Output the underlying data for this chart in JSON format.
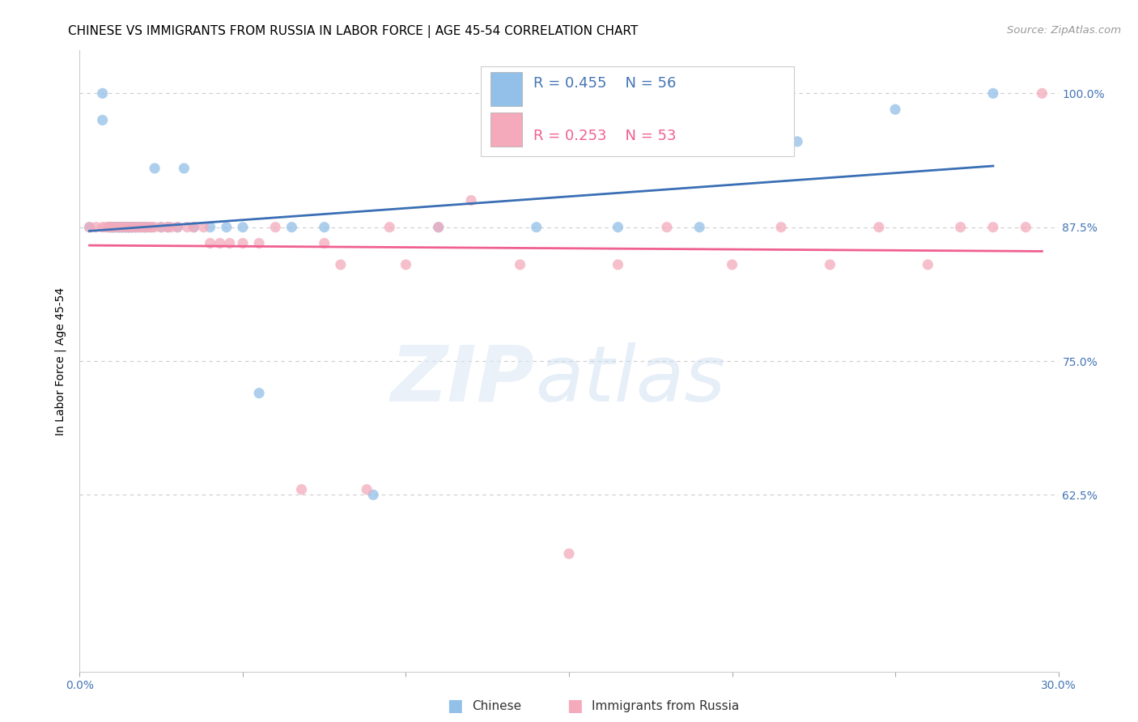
{
  "title": "CHINESE VS IMMIGRANTS FROM RUSSIA IN LABOR FORCE | AGE 45-54 CORRELATION CHART",
  "source": "Source: ZipAtlas.com",
  "ylabel": "In Labor Force | Age 45-54",
  "xlim": [
    0.0,
    0.3
  ],
  "ylim": [
    0.46,
    1.04
  ],
  "yticks": [
    1.0,
    0.875,
    0.75,
    0.625
  ],
  "ytick_labels": [
    "100.0%",
    "87.5%",
    "75.0%",
    "62.5%"
  ],
  "xticks": [
    0.0,
    0.05,
    0.1,
    0.15,
    0.2,
    0.25,
    0.3
  ],
  "xtick_labels": [
    "0.0%",
    "",
    "",
    "",
    "",
    "",
    "30.0%"
  ],
  "chinese_color": "#92C0E8",
  "russia_color": "#F4AABB",
  "chinese_line_color": "#3A6FB5",
  "russia_line_color": "#F06090",
  "chinese_x": [
    0.003,
    0.007,
    0.007,
    0.009,
    0.009,
    0.01,
    0.01,
    0.01,
    0.011,
    0.011,
    0.012,
    0.012,
    0.012,
    0.013,
    0.013,
    0.013,
    0.014,
    0.014,
    0.014,
    0.015,
    0.015,
    0.015,
    0.015,
    0.016,
    0.016,
    0.016,
    0.017,
    0.017,
    0.018,
    0.018,
    0.019,
    0.02,
    0.02,
    0.021,
    0.022,
    0.023,
    0.025,
    0.027,
    0.03,
    0.032,
    0.035,
    0.04,
    0.045,
    0.05,
    0.055,
    0.065,
    0.075,
    0.09,
    0.11,
    0.125,
    0.14,
    0.165,
    0.19,
    0.22,
    0.25,
    0.28
  ],
  "chinese_y": [
    0.875,
    0.975,
    1.0,
    0.875,
    0.875,
    0.875,
    0.875,
    0.875,
    0.875,
    0.875,
    0.875,
    0.875,
    0.875,
    0.875,
    0.875,
    0.875,
    0.875,
    0.875,
    0.875,
    0.875,
    0.875,
    0.875,
    0.875,
    0.875,
    0.875,
    0.875,
    0.875,
    0.875,
    0.875,
    0.875,
    0.875,
    0.875,
    0.875,
    0.875,
    0.875,
    0.93,
    0.875,
    0.875,
    0.875,
    0.93,
    0.875,
    0.875,
    0.875,
    0.875,
    0.72,
    0.875,
    0.875,
    0.625,
    0.875,
    0.955,
    0.875,
    0.875,
    0.875,
    0.955,
    0.985,
    1.0
  ],
  "russia_x": [
    0.003,
    0.005,
    0.007,
    0.008,
    0.009,
    0.01,
    0.011,
    0.012,
    0.013,
    0.014,
    0.015,
    0.016,
    0.017,
    0.018,
    0.019,
    0.02,
    0.021,
    0.022,
    0.023,
    0.025,
    0.027,
    0.028,
    0.03,
    0.033,
    0.035,
    0.038,
    0.04,
    0.043,
    0.046,
    0.05,
    0.055,
    0.06,
    0.068,
    0.075,
    0.08,
    0.088,
    0.095,
    0.1,
    0.11,
    0.12,
    0.135,
    0.15,
    0.165,
    0.18,
    0.2,
    0.215,
    0.23,
    0.245,
    0.26,
    0.27,
    0.28,
    0.29,
    0.295
  ],
  "russia_y": [
    0.875,
    0.875,
    0.875,
    0.875,
    0.875,
    0.875,
    0.875,
    0.875,
    0.875,
    0.875,
    0.875,
    0.875,
    0.875,
    0.875,
    0.875,
    0.875,
    0.875,
    0.875,
    0.875,
    0.875,
    0.875,
    0.875,
    0.875,
    0.875,
    0.875,
    0.875,
    0.86,
    0.86,
    0.86,
    0.86,
    0.86,
    0.875,
    0.63,
    0.86,
    0.84,
    0.63,
    0.875,
    0.84,
    0.875,
    0.9,
    0.84,
    0.57,
    0.84,
    0.875,
    0.84,
    0.875,
    0.84,
    0.875,
    0.84,
    0.875,
    0.875,
    0.875,
    1.0
  ],
  "title_fontsize": 11,
  "axis_label_fontsize": 10,
  "tick_fontsize": 10,
  "legend_fontsize": 13,
  "source_fontsize": 9.5
}
